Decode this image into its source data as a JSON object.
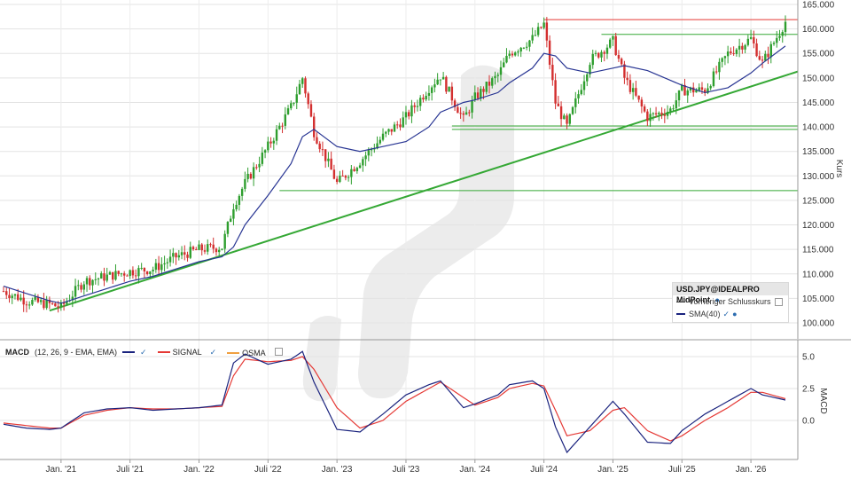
{
  "price_panel": {
    "y_axis_label": "Kurs",
    "y_ticks": [
      "165.000",
      "160.000",
      "155.000",
      "150.000",
      "145.000",
      "140.000",
      "135.000",
      "130.000",
      "125.000",
      "120.000",
      "115.000",
      "110.000",
      "105.000",
      "100.000"
    ]
  },
  "legend": {
    "instrument": "USD.JPY@IDEALPRO MidPoint",
    "prev_close": "Vorheriger Schlusskurs",
    "sma": "SMA(40)"
  },
  "macd_panel": {
    "label": "MACD",
    "params": "(12, 26, 9 - EMA, EMA)",
    "signal": "SIGNAL",
    "osma": "OSMA",
    "y_axis_label": "MACD",
    "y_ticks": [
      "5.0",
      "2.5",
      "0.0"
    ]
  },
  "x_ticks": [
    "Jan. '21",
    "Juli '21",
    "Jan. '22",
    "Juli '22",
    "Jan. '23",
    "Juli '23",
    "Jan. '24",
    "Juli '24",
    "Jan. '25",
    "Juli '25",
    "Jan. '26"
  ],
  "colors": {
    "up": "#2e9e2e",
    "down": "#d32f2f",
    "sma": "#283593",
    "support": "#35a835",
    "resistance": "#e53935",
    "macd": "#1a237e",
    "signal": "#e53935"
  },
  "chart_data": [
    {
      "type": "line",
      "title": "",
      "ylabel": "Kurs",
      "ylim": [
        96,
        165
      ],
      "x": [
        "2020-08",
        "2020-10",
        "2020-12",
        "2021-01",
        "2021-03",
        "2021-05",
        "2021-07",
        "2021-09",
        "2021-11",
        "2022-01",
        "2022-03",
        "2022-04",
        "2022-05",
        "2022-07",
        "2022-09",
        "2022-10",
        "2022-11",
        "2023-01",
        "2023-03",
        "2023-05",
        "2023-07",
        "2023-09",
        "2023-10",
        "2023-12",
        "2024-01",
        "2024-03",
        "2024-04",
        "2024-06",
        "2024-07",
        "2024-08",
        "2024-09",
        "2024-11",
        "2025-01",
        "2025-02",
        "2025-04",
        "2025-06",
        "2025-07",
        "2025-09",
        "2025-11",
        "2026-01",
        "2026-02",
        "2026-04"
      ],
      "series": [
        {
          "name": "USD.JPY@IDEALPRO MidPoint",
          "values": [
            106.5,
            104.5,
            103.8,
            103.2,
            108.5,
            109.5,
            110.5,
            111.0,
            113.5,
            115.0,
            115.5,
            124.0,
            128.5,
            136.0,
            144.0,
            150.0,
            139.0,
            128.5,
            133.0,
            138.0,
            142.0,
            148.0,
            150.5,
            141.5,
            146.0,
            150.5,
            155.0,
            158.0,
            161.0,
            145.0,
            140.0,
            153.5,
            157.5,
            150.0,
            142.0,
            143.5,
            147.5,
            147.5,
            155.0,
            158.0,
            153.0,
            161.5
          ]
        },
        {
          "name": "SMA(40)",
          "values": [
            107.5,
            106.0,
            104.5,
            104.0,
            105.5,
            107.0,
            108.5,
            109.5,
            111.0,
            112.5,
            113.5,
            115.5,
            120.0,
            126.0,
            132.5,
            138.0,
            139.5,
            136.0,
            135.0,
            136.0,
            137.0,
            140.0,
            143.0,
            145.0,
            145.5,
            147.0,
            149.0,
            152.0,
            155.0,
            154.5,
            152.0,
            151.0,
            152.0,
            152.5,
            151.5,
            149.5,
            148.5,
            147.0,
            148.0,
            151.0,
            153.0,
            156.5
          ]
        }
      ],
      "annotations": [
        {
          "type": "hline",
          "value": 161.9,
          "color": "#e53935",
          "from": "2024-07",
          "to": "2026-04"
        },
        {
          "type": "hline",
          "value": 158.9,
          "color": "#35a835",
          "from": "2024-12",
          "to": "2026-04"
        },
        {
          "type": "hline",
          "value": 140.2,
          "color": "#35a835",
          "from": "2023-11",
          "to": "2026-04"
        },
        {
          "type": "hline",
          "value": 139.5,
          "color": "#35a835",
          "from": "2023-11",
          "to": "2026-04"
        },
        {
          "type": "hline",
          "value": 127.0,
          "color": "#35a835",
          "from": "2022-08",
          "to": "2026-04"
        },
        {
          "type": "trendline",
          "from": [
            "2020-12",
            102.5
          ],
          "to": [
            "2026-04",
            150.5
          ],
          "color": "#35a835"
        }
      ]
    },
    {
      "type": "line",
      "title": "MACD (12, 26, 9 - EMA, EMA)",
      "ylabel": "MACD",
      "ylim": [
        -3,
        5.5
      ],
      "x": [
        "2020-08",
        "2020-10",
        "2020-12",
        "2021-01",
        "2021-03",
        "2021-05",
        "2021-07",
        "2021-09",
        "2021-11",
        "2022-01",
        "2022-03",
        "2022-04",
        "2022-05",
        "2022-07",
        "2022-09",
        "2022-10",
        "2022-11",
        "2023-01",
        "2023-03",
        "2023-05",
        "2023-07",
        "2023-09",
        "2023-10",
        "2023-12",
        "2024-01",
        "2024-03",
        "2024-04",
        "2024-06",
        "2024-07",
        "2024-08",
        "2024-09",
        "2024-11",
        "2025-01",
        "2025-02",
        "2025-04",
        "2025-06",
        "2025-07",
        "2025-09",
        "2025-11",
        "2026-01",
        "2026-02",
        "2026-04"
      ],
      "series": [
        {
          "name": "MACD",
          "values": [
            -0.3,
            -0.6,
            -0.7,
            -0.6,
            0.6,
            0.9,
            1.0,
            0.8,
            0.9,
            1.0,
            1.2,
            4.5,
            5.2,
            4.4,
            4.8,
            5.4,
            3.0,
            -0.7,
            -0.9,
            0.5,
            2.0,
            2.8,
            3.1,
            1.0,
            1.3,
            2.0,
            2.8,
            3.1,
            2.5,
            -0.5,
            -2.5,
            -0.5,
            1.5,
            0.5,
            -1.7,
            -1.8,
            -0.8,
            0.5,
            1.5,
            2.5,
            2.0,
            1.6
          ]
        },
        {
          "name": "SIGNAL",
          "values": [
            -0.2,
            -0.4,
            -0.6,
            -0.6,
            0.4,
            0.8,
            1.0,
            0.9,
            0.9,
            1.0,
            1.1,
            3.5,
            4.8,
            4.6,
            4.7,
            5.0,
            4.0,
            1.0,
            -0.6,
            0.0,
            1.5,
            2.5,
            3.0,
            1.8,
            1.2,
            1.8,
            2.5,
            2.9,
            2.7,
            0.8,
            -1.2,
            -0.8,
            0.8,
            1.0,
            -0.8,
            -1.6,
            -1.2,
            0.0,
            1.0,
            2.2,
            2.2,
            1.7
          ]
        }
      ]
    }
  ]
}
